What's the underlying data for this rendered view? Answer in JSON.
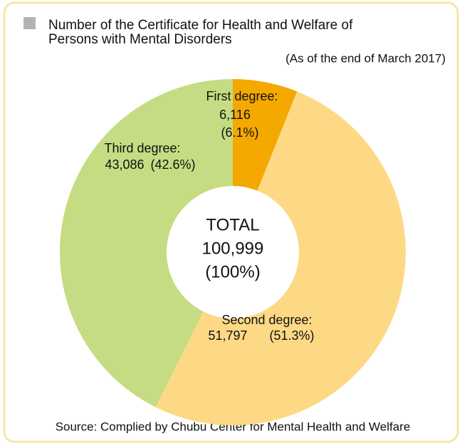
{
  "chart_data": {
    "type": "donut",
    "title": [
      "Number of the Certificate for Health and  Welfare of",
      "Persons with Mental Disorders"
    ],
    "subtitle": "(As of the end of March 2017)",
    "categories": [
      "First degree:",
      "Second degree:",
      "Third degree:"
    ],
    "values": [
      6116,
      51797,
      43086
    ],
    "value_labels": [
      "6,116",
      "51,797",
      "43,086"
    ],
    "percent_labels": [
      "(6.1%)",
      "(51.3%)",
      "(42.6%)"
    ],
    "colors": [
      "#f5a800",
      "#fdd985",
      "#c5dc82"
    ],
    "center": [
      "TOTAL",
      "100,999",
      "(100%)"
    ],
    "source": "Source: Complied by Chubu Center for Mental Health and Welfare"
  }
}
